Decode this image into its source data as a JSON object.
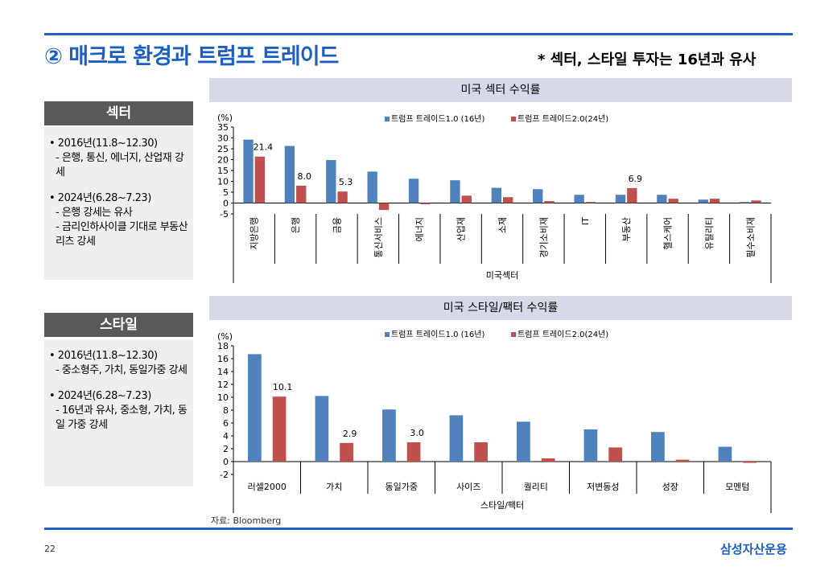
{
  "header": {
    "title": "② 매크로 환경과 트럼프 트레이드",
    "note": "* 섹터, 스타일 투자는 16년과 유사"
  },
  "sector_panel": {
    "heading": "섹터",
    "lines": [
      {
        "type": "b",
        "text": "• 2016년(11.8~12.30)"
      },
      {
        "type": "d",
        "text": "- 은행, 통신, 에너지, 산업재 강세"
      },
      {
        "type": "gap",
        "text": ""
      },
      {
        "type": "b",
        "text": "• 2024년(6.28~7.23)"
      },
      {
        "type": "d",
        "text": "- 은행 강세는 유사"
      },
      {
        "type": "d",
        "text": "- 금리인하사이클 기대로 부동산 리츠 강세"
      }
    ]
  },
  "style_panel": {
    "heading": "스타일",
    "lines": [
      {
        "type": "b",
        "text": "• 2016년(11.8~12.30)"
      },
      {
        "type": "d",
        "text": "- 중소형주, 가치, 동일가중 강세"
      },
      {
        "type": "gap",
        "text": ""
      },
      {
        "type": "b",
        "text": "• 2024년(6.28~7.23)"
      },
      {
        "type": "d",
        "text": "- 16년과 유사, 중소형, 가치, 동일 가중 강세"
      }
    ]
  },
  "footer": {
    "source": "자료: Bloomberg",
    "page": "22",
    "brand": "삼성자산운용"
  },
  "colors": {
    "series1": "#4f81bd",
    "series2": "#c0504d",
    "accent": "#1f5fbf"
  },
  "chart_data": [
    {
      "type": "bar",
      "title": "미국 섹터 수익률",
      "xlabel": "미국섹터",
      "ylabel": "(%)",
      "ylim": [
        -5,
        35
      ],
      "yticks": [
        -5,
        0,
        5,
        10,
        15,
        20,
        25,
        30,
        35
      ],
      "legend": "top",
      "categories": [
        "지방은행",
        "은행",
        "금융",
        "통신서비스",
        "에너지",
        "산업재",
        "소재",
        "경기소비재",
        "IT",
        "부동산",
        "헬스케어",
        "유틸리티",
        "필수소비재"
      ],
      "series": [
        {
          "name": "트럼프 트레이드1.0 (16년)",
          "values": [
            29.2,
            26.3,
            19.8,
            14.5,
            11.2,
            10.5,
            7.0,
            6.4,
            3.8,
            3.8,
            3.8,
            1.6,
            0.5
          ]
        },
        {
          "name": "트럼프 트레이드2.0(24년)",
          "values": [
            21.4,
            8.0,
            5.3,
            -3.2,
            -0.5,
            3.4,
            2.7,
            0.9,
            0.5,
            6.9,
            2.0,
            2.0,
            1.2
          ]
        }
      ],
      "data_labels": [
        {
          "series": 1,
          "index": 0,
          "text": "21.4"
        },
        {
          "series": 1,
          "index": 1,
          "text": "8.0"
        },
        {
          "series": 1,
          "index": 2,
          "text": "5.3"
        },
        {
          "series": 1,
          "index": 9,
          "text": "6.9"
        }
      ]
    },
    {
      "type": "bar",
      "title": "미국 스타일/팩터 수익률",
      "xlabel": "스타일/팩터",
      "ylabel": "(%)",
      "ylim": [
        -2,
        18
      ],
      "yticks": [
        -2,
        0,
        2,
        4,
        6,
        8,
        10,
        12,
        14,
        16,
        18
      ],
      "legend": "top",
      "categories": [
        "러셀2000",
        "가치",
        "동일가중",
        "사이즈",
        "퀄리티",
        "저변동성",
        "성장",
        "모멘텀"
      ],
      "series": [
        {
          "name": "트럼프 트레이드1.0 (16년)",
          "values": [
            16.7,
            10.2,
            8.1,
            7.2,
            6.2,
            5.0,
            4.6,
            2.3
          ]
        },
        {
          "name": "트럼프 트레이드2.0(24년)",
          "values": [
            10.1,
            2.9,
            3.0,
            3.0,
            0.5,
            2.2,
            0.3,
            -0.2
          ]
        }
      ],
      "data_labels": [
        {
          "series": 1,
          "index": 0,
          "text": "10.1"
        },
        {
          "series": 1,
          "index": 1,
          "text": "2.9"
        },
        {
          "series": 1,
          "index": 2,
          "text": "3.0"
        }
      ]
    }
  ]
}
